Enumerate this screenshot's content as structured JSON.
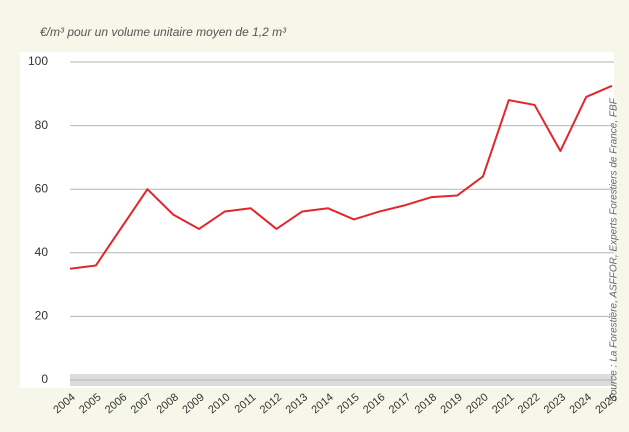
{
  "chart_data": {
    "type": "line",
    "title": "€/m³ pour un volume unitaire moyen de 1,2 m³",
    "source": "Source : La Forestière, ASFFOR, Experts Forestiers de France, FBF",
    "categories": [
      "2004",
      "2005",
      "2006",
      "2007",
      "2008",
      "2009",
      "2010",
      "2011",
      "2012",
      "2013",
      "2014",
      "2015",
      "2016",
      "2017",
      "2018",
      "2019",
      "2020",
      "2021",
      "2022",
      "2023",
      "2024",
      "2025"
    ],
    "series": [
      {
        "color": "#e3262b",
        "values": [
          35,
          36,
          48,
          60,
          52,
          47.5,
          53,
          54,
          47.5,
          53,
          54,
          50.5,
          53,
          55,
          57.5,
          58,
          64,
          88,
          86.5,
          72,
          89,
          92.5
        ]
      }
    ],
    "ylim": [
      0,
      100
    ],
    "yticks": [
      0,
      20,
      40,
      60,
      80,
      100
    ],
    "grid": true
  }
}
